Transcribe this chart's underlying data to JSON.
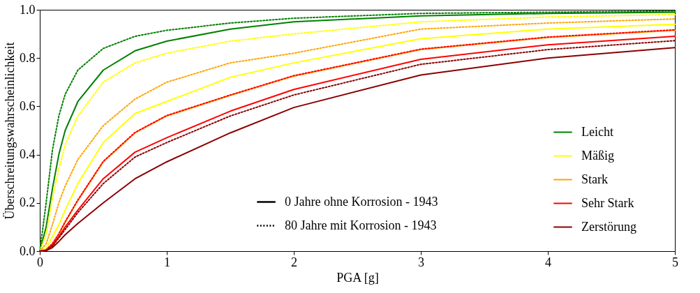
{
  "chart_data": {
    "type": "line",
    "xlabel": "PGA [g]",
    "ylabel": "Überschreitungswahrscheinlichkeit",
    "x": [
      0,
      0.05,
      0.1,
      0.15,
      0.2,
      0.3,
      0.5,
      0.75,
      1,
      1.5,
      2,
      3,
      4,
      5
    ],
    "series": [
      {
        "name": "Leicht",
        "color": "#008000",
        "line_style": "solid",
        "values": [
          0,
          0.1,
          0.26,
          0.4,
          0.5,
          0.62,
          0.75,
          0.83,
          0.87,
          0.92,
          0.95,
          0.975,
          0.985,
          0.99
        ]
      },
      {
        "name": "Mäßig",
        "color": "#ffff00",
        "line_style": "solid",
        "values": [
          0,
          0.01,
          0.06,
          0.11,
          0.17,
          0.28,
          0.45,
          0.57,
          0.62,
          0.72,
          0.78,
          0.88,
          0.92,
          0.94
        ]
      },
      {
        "name": "Stark",
        "color": "#ffa500",
        "line_style": "solid",
        "values": [
          0,
          0.005,
          0.03,
          0.07,
          0.12,
          0.21,
          0.37,
          0.49,
          0.56,
          0.645,
          0.725,
          0.835,
          0.885,
          0.915
        ]
      },
      {
        "name": "Sehr Stark",
        "color": "#ff0000",
        "line_style": "solid",
        "values": [
          0,
          0.004,
          0.025,
          0.06,
          0.1,
          0.17,
          0.3,
          0.41,
          0.47,
          0.58,
          0.67,
          0.795,
          0.855,
          0.89
        ]
      },
      {
        "name": "Zerstörung",
        "color": "#8b0000",
        "line_style": "solid",
        "values": [
          0,
          0.002,
          0.015,
          0.04,
          0.068,
          0.115,
          0.2,
          0.3,
          0.37,
          0.49,
          0.595,
          0.73,
          0.8,
          0.843
        ]
      },
      {
        "color": "#008000",
        "line_style": "dotted",
        "values": [
          0,
          0.2,
          0.42,
          0.56,
          0.65,
          0.75,
          0.84,
          0.89,
          0.915,
          0.945,
          0.965,
          0.985,
          0.99,
          0.995
        ]
      },
      {
        "color": "#ffff00",
        "line_style": "dotted",
        "values": [
          0,
          0.07,
          0.22,
          0.34,
          0.44,
          0.56,
          0.7,
          0.78,
          0.82,
          0.87,
          0.9,
          0.95,
          0.97,
          0.98
        ]
      },
      {
        "color": "#ffa500",
        "line_style": "dotted",
        "values": [
          0,
          0.03,
          0.11,
          0.2,
          0.27,
          0.38,
          0.52,
          0.63,
          0.7,
          0.78,
          0.82,
          0.92,
          0.945,
          0.962
        ]
      },
      {
        "color": "#ff0000",
        "line_style": "dotted",
        "values": [
          0,
          0.005,
          0.032,
          0.072,
          0.122,
          0.212,
          0.372,
          0.492,
          0.562,
          0.647,
          0.727,
          0.837,
          0.887,
          0.917
        ]
      },
      {
        "color": "#8b0000",
        "line_style": "dotted",
        "values": [
          0,
          0.004,
          0.022,
          0.055,
          0.09,
          0.16,
          0.28,
          0.39,
          0.45,
          0.56,
          0.647,
          0.774,
          0.835,
          0.872
        ]
      }
    ],
    "annotations": [
      "0 Jahre ohne Korrosion - 1943",
      "80 Jahre mit Korrosion - 1943"
    ],
    "xlim": [
      0,
      5
    ],
    "xticks": [
      0,
      1,
      2,
      3,
      4,
      5
    ],
    "ylim": [
      0,
      1
    ],
    "yticks": [
      {
        "value": 0,
        "label": "0.0"
      },
      {
        "value": 0.2,
        "label": "0.2"
      },
      {
        "value": 0.4,
        "label": "0.4"
      },
      {
        "value": 0.6,
        "label": "0.6"
      },
      {
        "value": 0.8,
        "label": "0.8"
      },
      {
        "value": 1,
        "label": "1.0"
      }
    ],
    "grid": false,
    "legend": "bottom right",
    "marker": "none"
  }
}
